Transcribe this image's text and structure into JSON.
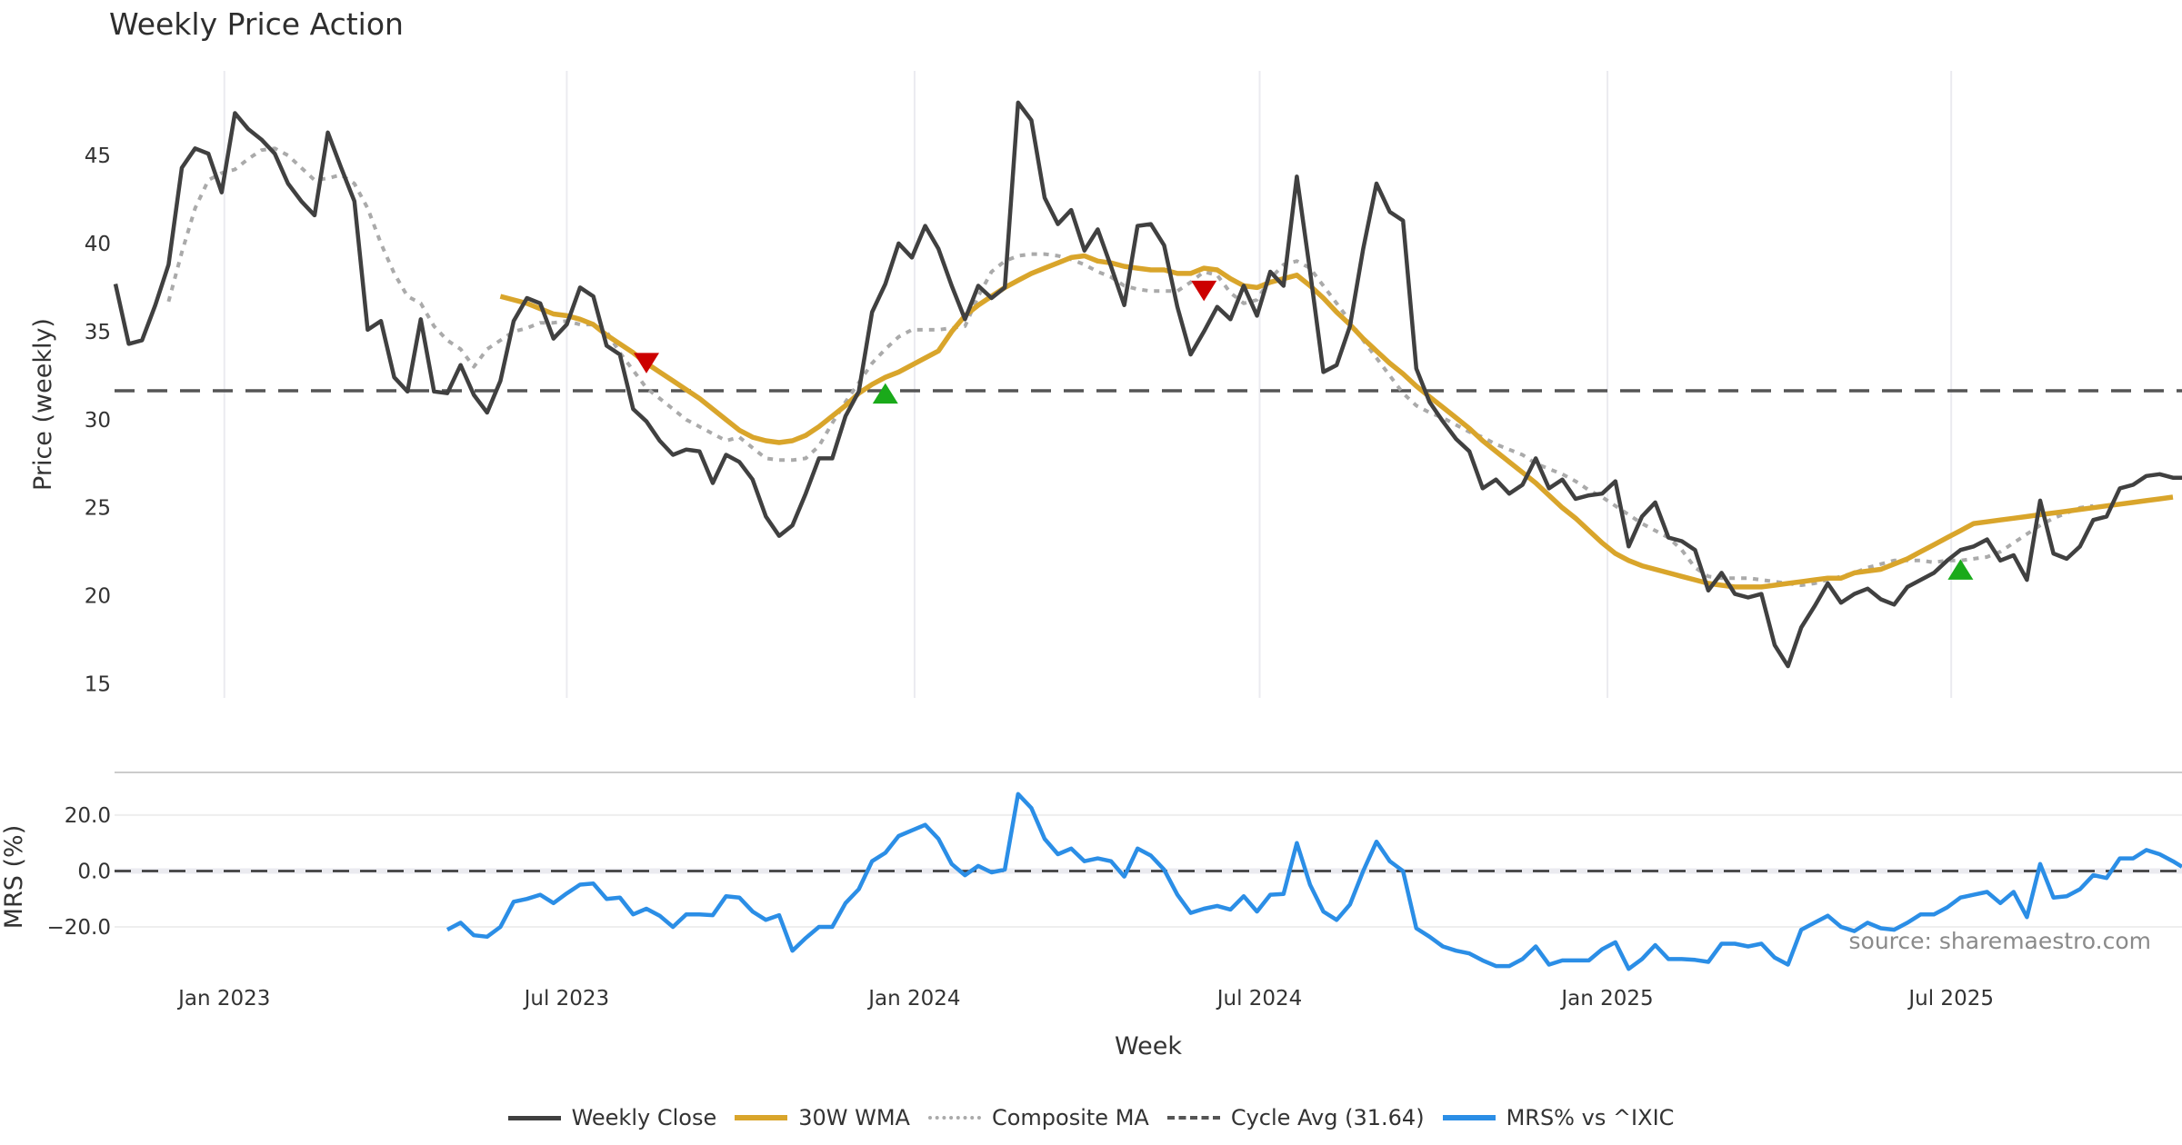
{
  "chart_data": {
    "type": "line",
    "title": "Weekly Price Action",
    "panels": [
      {
        "name": "price",
        "ylabel": "Price (weekly)",
        "ylim": [
          14.2,
          49.8
        ],
        "yticks": [
          15,
          20,
          25,
          30,
          35,
          40,
          45
        ],
        "ytick_labels": [
          "15",
          "20",
          "25",
          "30",
          "35",
          "40",
          "45"
        ]
      },
      {
        "name": "mrs",
        "ylabel": "MRS (%)",
        "ylim": [
          -33,
          32
        ],
        "yticks": [
          20,
          0,
          -20
        ],
        "ytick_labels": [
          "20.0",
          "0.0",
          "−20.0"
        ]
      }
    ],
    "xlabel": "Week",
    "x_start": "2022-11-07",
    "x_step": "1 week",
    "n_points": 156,
    "xticks": [
      {
        "label": "Jan 2023",
        "week_index": 8.2
      },
      {
        "label": "Jul 2023",
        "week_index": 34.0
      },
      {
        "label": "Jan 2024",
        "week_index": 60.2
      },
      {
        "label": "Jul 2024",
        "week_index": 86.2
      },
      {
        "label": "Jan 2025",
        "week_index": 112.4
      },
      {
        "label": "Jul 2025",
        "week_index": 138.3
      }
    ],
    "grid": "vertical",
    "legend_position": "bottom-center",
    "series": [
      {
        "name": "Weekly Close",
        "color": "#404040",
        "style": "solid",
        "panel": "price",
        "start_index": 0,
        "values": [
          37.7,
          34.3,
          34.5,
          36.5,
          38.8,
          44.3,
          45.4,
          45.1,
          42.9,
          47.4,
          46.5,
          45.9,
          45.1,
          43.4,
          42.4,
          41.6,
          46.3,
          44.3,
          42.4,
          35.1,
          35.6,
          32.4,
          31.6,
          35.7,
          31.6,
          31.5,
          33.1,
          31.4,
          30.4,
          32.2,
          35.6,
          36.9,
          36.6,
          34.6,
          35.4,
          37.5,
          37.0,
          34.2,
          33.7,
          30.6,
          29.9,
          28.8,
          28.0,
          28.3,
          28.2,
          26.4,
          28.0,
          27.6,
          26.6,
          24.5,
          23.4,
          24.0,
          25.8,
          27.8,
          27.8,
          30.2,
          31.6,
          36.1,
          37.7,
          40.0,
          39.2,
          41.0,
          39.7,
          37.6,
          35.7,
          37.6,
          36.9,
          37.5,
          48.0,
          47.0,
          42.6,
          41.1,
          41.9,
          39.6,
          40.8,
          38.7,
          36.5,
          41.0,
          41.1,
          39.9,
          36.4,
          33.7,
          35.0,
          36.4,
          35.7,
          37.6,
          35.9,
          38.4,
          37.6,
          43.8,
          38.4,
          32.7,
          33.1,
          35.3,
          39.7,
          43.4,
          41.8,
          41.3,
          32.9,
          31.0,
          29.9,
          28.9,
          28.2,
          26.1,
          26.6,
          25.8,
          26.3,
          27.8,
          26.1,
          26.6,
          25.5,
          25.7,
          25.8,
          26.5,
          22.8,
          24.5,
          25.3,
          23.3,
          23.1,
          22.6,
          20.3,
          21.3,
          20.1,
          19.9,
          20.1,
          17.2,
          16.0,
          18.2,
          19.4,
          20.7,
          19.6,
          20.1,
          20.4,
          19.8,
          19.5,
          20.5,
          20.9,
          21.3,
          22.0,
          22.6,
          22.8,
          23.2,
          22.0,
          22.3,
          20.9,
          25.4,
          22.4,
          22.1,
          22.8,
          24.3,
          24.5,
          26.1,
          26.3,
          26.8,
          26.9,
          26.7,
          26.7
        ]
      },
      {
        "name": "30W WMA",
        "color": "#d9a52b",
        "style": "solid",
        "panel": "price",
        "start_index": 29,
        "values": [
          37.0,
          36.8,
          36.6,
          36.3,
          36.0,
          35.9,
          35.7,
          35.4,
          34.8,
          34.3,
          33.8,
          33.2,
          32.7,
          32.2,
          31.7,
          31.2,
          30.6,
          30.0,
          29.4,
          29.0,
          28.8,
          28.7,
          28.8,
          29.1,
          29.6,
          30.2,
          30.8,
          31.5,
          32.0,
          32.4,
          32.7,
          33.1,
          33.5,
          33.9,
          35.0,
          35.9,
          36.5,
          37.0,
          37.5,
          37.9,
          38.3,
          38.6,
          38.9,
          39.2,
          39.3,
          39.0,
          38.9,
          38.7,
          38.6,
          38.5,
          38.5,
          38.3,
          38.3,
          38.6,
          38.5,
          38.0,
          37.6,
          37.5,
          37.8,
          38.0,
          38.2,
          37.6,
          36.9,
          36.1,
          35.4,
          34.6,
          33.9,
          33.2,
          32.6,
          31.9,
          31.3,
          30.7,
          30.1,
          29.5,
          28.8,
          28.2,
          27.6,
          27.0,
          26.4,
          25.7,
          25.0,
          24.4,
          23.7,
          23.0,
          22.4,
          22.0,
          21.7,
          21.5,
          21.3,
          21.1,
          20.9,
          20.7,
          20.6,
          20.5,
          20.5,
          20.5,
          20.6,
          20.7,
          20.8,
          20.9,
          21.0,
          21.0,
          21.3,
          21.4,
          21.5,
          21.8,
          22.1,
          22.5,
          22.9,
          23.3,
          23.7,
          24.1,
          24.2,
          24.3,
          24.4,
          24.5,
          24.6,
          24.7,
          24.8,
          24.9,
          25.0,
          25.1,
          25.2,
          25.3,
          25.4,
          25.5,
          25.6
        ]
      },
      {
        "name": "Composite MA",
        "color": "#aaaaaa",
        "style": "dotted",
        "panel": "price",
        "start_index": 4,
        "values": [
          36.7,
          39.5,
          42.0,
          43.6,
          44.0,
          44.2,
          44.8,
          45.3,
          45.4,
          45.0,
          44.3,
          43.6,
          43.7,
          43.9,
          43.4,
          42.0,
          40.0,
          38.3,
          37.0,
          36.6,
          35.3,
          34.5,
          34.0,
          33.0,
          34.0,
          34.5,
          35.0,
          35.2,
          35.5,
          35.5,
          35.6,
          35.4,
          35.4,
          35.0,
          33.8,
          32.8,
          31.8,
          31.2,
          30.6,
          30.0,
          29.6,
          29.2,
          28.8,
          29.0,
          28.4,
          27.8,
          27.7,
          27.7,
          27.8,
          28.5,
          29.8,
          31.0,
          32.1,
          33.2,
          34.0,
          34.7,
          35.1,
          35.1,
          35.1,
          35.2,
          35.3,
          37.0,
          38.4,
          39.0,
          39.3,
          39.4,
          39.4,
          39.3,
          39.1,
          38.8,
          38.4,
          38.1,
          37.6,
          37.4,
          37.3,
          37.3,
          37.3,
          37.8,
          38.4,
          38.2,
          37.2,
          36.6,
          36.8,
          38.0,
          38.8,
          39.0,
          38.6,
          37.6,
          36.6,
          35.6,
          34.5,
          33.5,
          32.5,
          31.5,
          30.8,
          30.4,
          30.1,
          29.7,
          29.3,
          29.0,
          28.6,
          28.3,
          28.0,
          27.5,
          27.2,
          26.9,
          26.5,
          26.0,
          25.6,
          25.1,
          24.6,
          24.1,
          23.7,
          23.3,
          22.6,
          21.6,
          21.1,
          21.0,
          21.0,
          21.0,
          20.9,
          20.8,
          20.7,
          20.6,
          20.7,
          20.9,
          21.1,
          21.3,
          21.6,
          21.8,
          22.0,
          22.0,
          22.0,
          21.9,
          22.0,
          22.0,
          22.1,
          22.2,
          22.5,
          23.0,
          23.5,
          24.0,
          24.4,
          24.7,
          25.0,
          25.1
        ]
      },
      {
        "name": "Cycle Avg (31.64)",
        "color": "#555555",
        "style": "dashed",
        "panel": "price",
        "constant": 31.64
      },
      {
        "name": "MRS% vs ^IXIC",
        "color": "#2b8ee6",
        "style": "solid",
        "panel": "mrs",
        "start_index": 25,
        "values": [
          -21.0,
          -18.5,
          -23.0,
          -23.5,
          -20.0,
          -11.0,
          -10.0,
          -8.5,
          -11.5,
          -8.0,
          -4.9,
          -4.5,
          -10.0,
          -9.5,
          -15.5,
          -13.5,
          -16.0,
          -20.0,
          -15.5,
          -15.5,
          -15.8,
          -9.0,
          -9.5,
          -14.5,
          -17.5,
          -15.8,
          -28.5,
          -24.0,
          -20.0,
          -20.0,
          -11.5,
          -6.5,
          3.5,
          6.5,
          12.5,
          14.5,
          16.5,
          11.5,
          2.5,
          -1.5,
          1.8,
          -0.5,
          0.5,
          27.5,
          22.5,
          11.5,
          6.0,
          8.0,
          3.5,
          4.5,
          3.5,
          -2.0,
          8.0,
          5.5,
          0.5,
          -8.5,
          -15.0,
          -13.5,
          -12.5,
          -13.8,
          -9.0,
          -14.5,
          -8.5,
          -8.2,
          10.0,
          -5.0,
          -14.5,
          -17.5,
          -12.0,
          0.0,
          10.5,
          3.5,
          0.0,
          -20.5,
          -23.5,
          -27.0,
          -28.5,
          -29.5,
          -32.0,
          -34.0,
          -34.0,
          -31.5,
          -27.0,
          -33.5,
          -32.0,
          -32.0,
          -32.0,
          -28.0,
          -25.5,
          -35.0,
          -31.5,
          -26.5,
          -31.5,
          -31.5,
          -31.8,
          -32.5,
          -26.0,
          -26.0,
          -27.0,
          -26.0,
          -31.0,
          -33.5,
          -21.0,
          -18.5,
          -16.0,
          -20.0,
          -21.5,
          -18.5,
          -20.5,
          -21.0,
          -18.5,
          -15.5,
          -15.5,
          -13.0,
          -9.5,
          -8.5,
          -7.5,
          -11.5,
          -7.5,
          -16.5,
          2.5,
          -9.5,
          -9.0,
          -6.5,
          -1.5,
          -2.5,
          4.5,
          4.5,
          7.5,
          6.0,
          3.5,
          1.5
        ]
      }
    ],
    "markers": [
      {
        "type": "sell",
        "shape": "triangle-down",
        "color": "#cc0000",
        "week_index": 40,
        "price": 33.4
      },
      {
        "type": "buy",
        "shape": "triangle-up",
        "color": "#1aaa1a",
        "week_index": 58,
        "price": 31.3
      },
      {
        "type": "sell",
        "shape": "triangle-down",
        "color": "#cc0000",
        "week_index": 82,
        "price": 37.5
      },
      {
        "type": "buy",
        "shape": "triangle-up",
        "color": "#1aaa1a",
        "week_index": 139,
        "price": 21.3
      }
    ],
    "annotation": "source: sharemaestro.com"
  }
}
